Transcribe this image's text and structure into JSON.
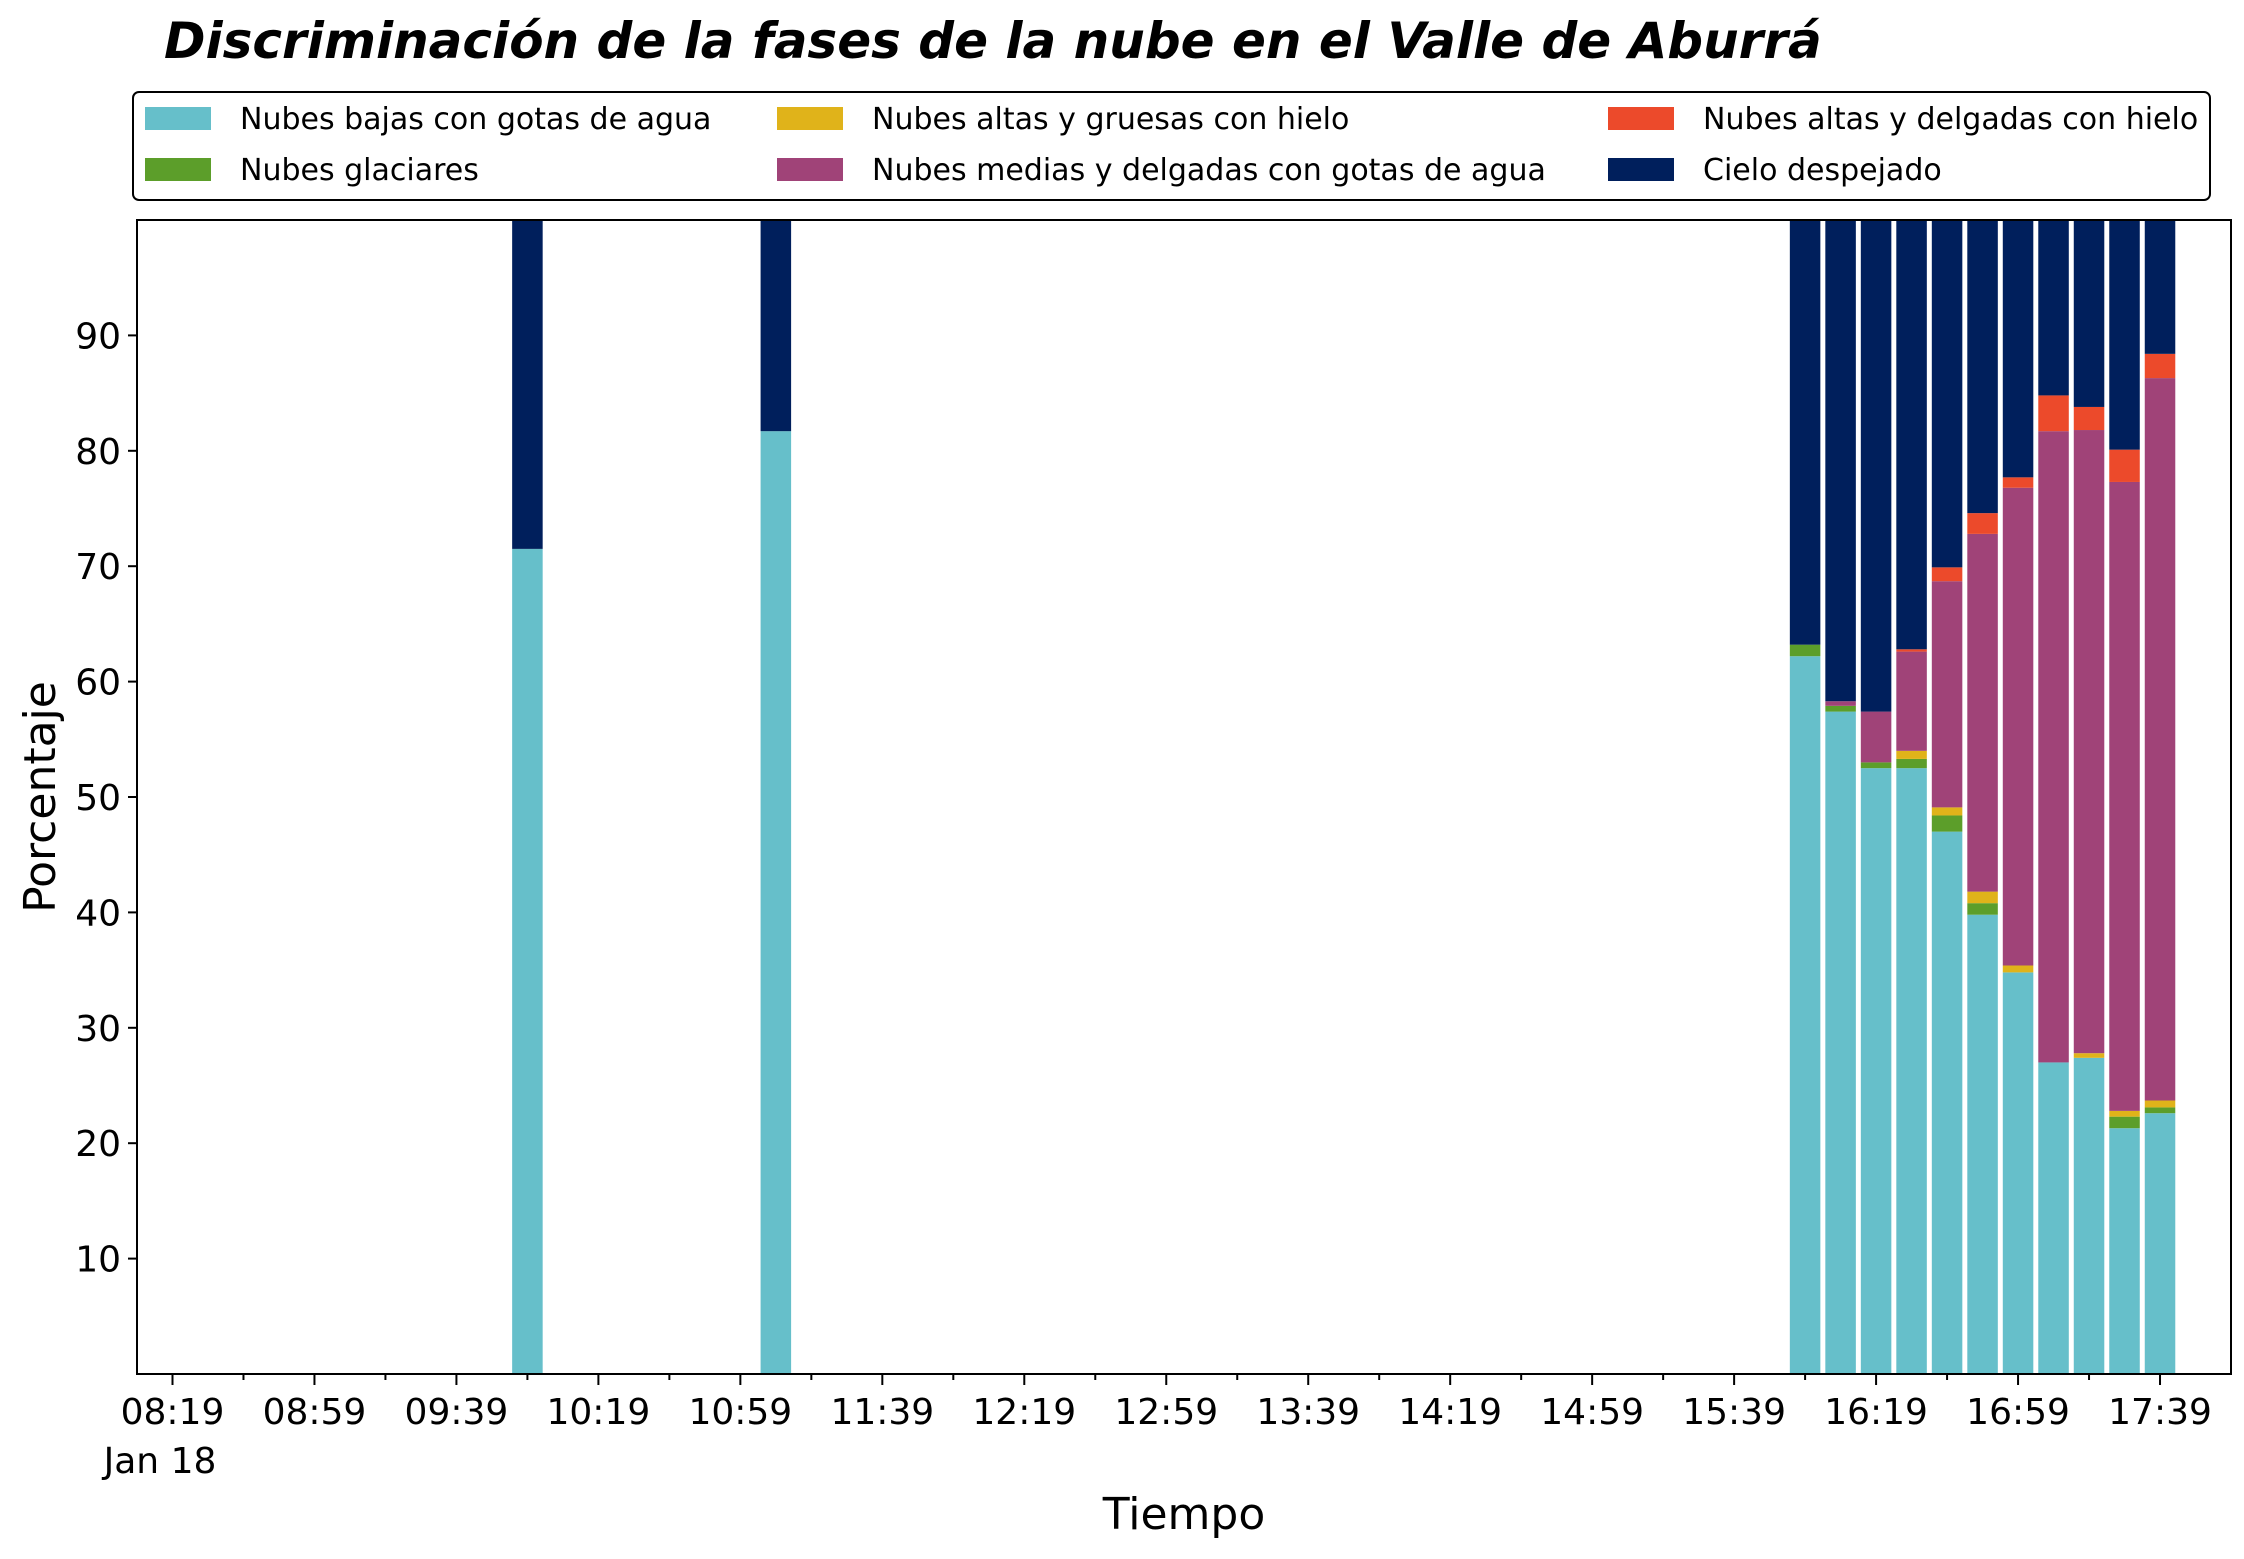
{
  "chart_data": {
    "type": "bar",
    "stacked": true,
    "title": "Discriminación de la fases de la nube en el Valle de Aburrá",
    "xlabel": "Tiempo",
    "ylabel": "Porcentaje",
    "date_label": "Jan 18",
    "ylim": [
      0,
      100
    ],
    "yticks": [
      10,
      20,
      30,
      40,
      50,
      60,
      70,
      80,
      90
    ],
    "x_range": [
      "08:09",
      "17:59"
    ],
    "xticks_major": [
      "08:19",
      "08:59",
      "09:39",
      "10:19",
      "10:59",
      "11:39",
      "12:19",
      "12:59",
      "13:39",
      "14:19",
      "14:59",
      "15:39",
      "16:19",
      "16:59",
      "17:39"
    ],
    "legend_position": "top",
    "grid": false,
    "series": [
      {
        "name": "Nubes bajas con gotas de agua",
        "color": "#66bfca"
      },
      {
        "name": "Nubes glaciares",
        "color": "#5c9e2a"
      },
      {
        "name": "Nubes altas y gruesas con hielo",
        "color": "#e0b31a"
      },
      {
        "name": "Nubes medias y delgadas con gotas de agua",
        "color": "#a04378"
      },
      {
        "name": "Nubes altas y delgadas con hielo",
        "color": "#ec4a2b"
      },
      {
        "name": "Cielo despejado",
        "color": "#001f5c"
      }
    ],
    "x": [
      "09:59",
      "11:09",
      "15:59",
      "16:09",
      "16:19",
      "16:29",
      "16:39",
      "16:49",
      "16:59",
      "17:09",
      "17:19",
      "17:29",
      "17:39"
    ],
    "values": {
      "Nubes bajas con gotas de agua": [
        71.5,
        81.7,
        62.2,
        57.4,
        52.5,
        52.5,
        47.0,
        39.8,
        34.8,
        27.0,
        27.4,
        21.3,
        22.6
      ],
      "Nubes glaciares": [
        0,
        0,
        1.0,
        0.5,
        0.5,
        0.8,
        1.4,
        1.0,
        0,
        0,
        0,
        1.0,
        0.5
      ],
      "Nubes altas y gruesas con hielo": [
        0,
        0,
        0,
        0,
        0,
        0.7,
        0.7,
        1.0,
        0.6,
        0,
        0.4,
        0.5,
        0.6
      ],
      "Nubes medias y delgadas con gotas de agua": [
        0,
        0,
        0,
        0.4,
        4.4,
        8.6,
        19.6,
        31.0,
        41.4,
        54.7,
        54.0,
        54.5,
        62.6
      ],
      "Nubes altas y delgadas con hielo": [
        0,
        0,
        0,
        0,
        0,
        0.2,
        1.2,
        1.8,
        0.9,
        3.1,
        2.0,
        2.8,
        2.1
      ],
      "Cielo despejado": [
        28.5,
        18.3,
        36.8,
        41.7,
        42.6,
        37.2,
        30.1,
        25.4,
        22.3,
        15.2,
        16.2,
        19.9,
        11.6
      ]
    }
  }
}
